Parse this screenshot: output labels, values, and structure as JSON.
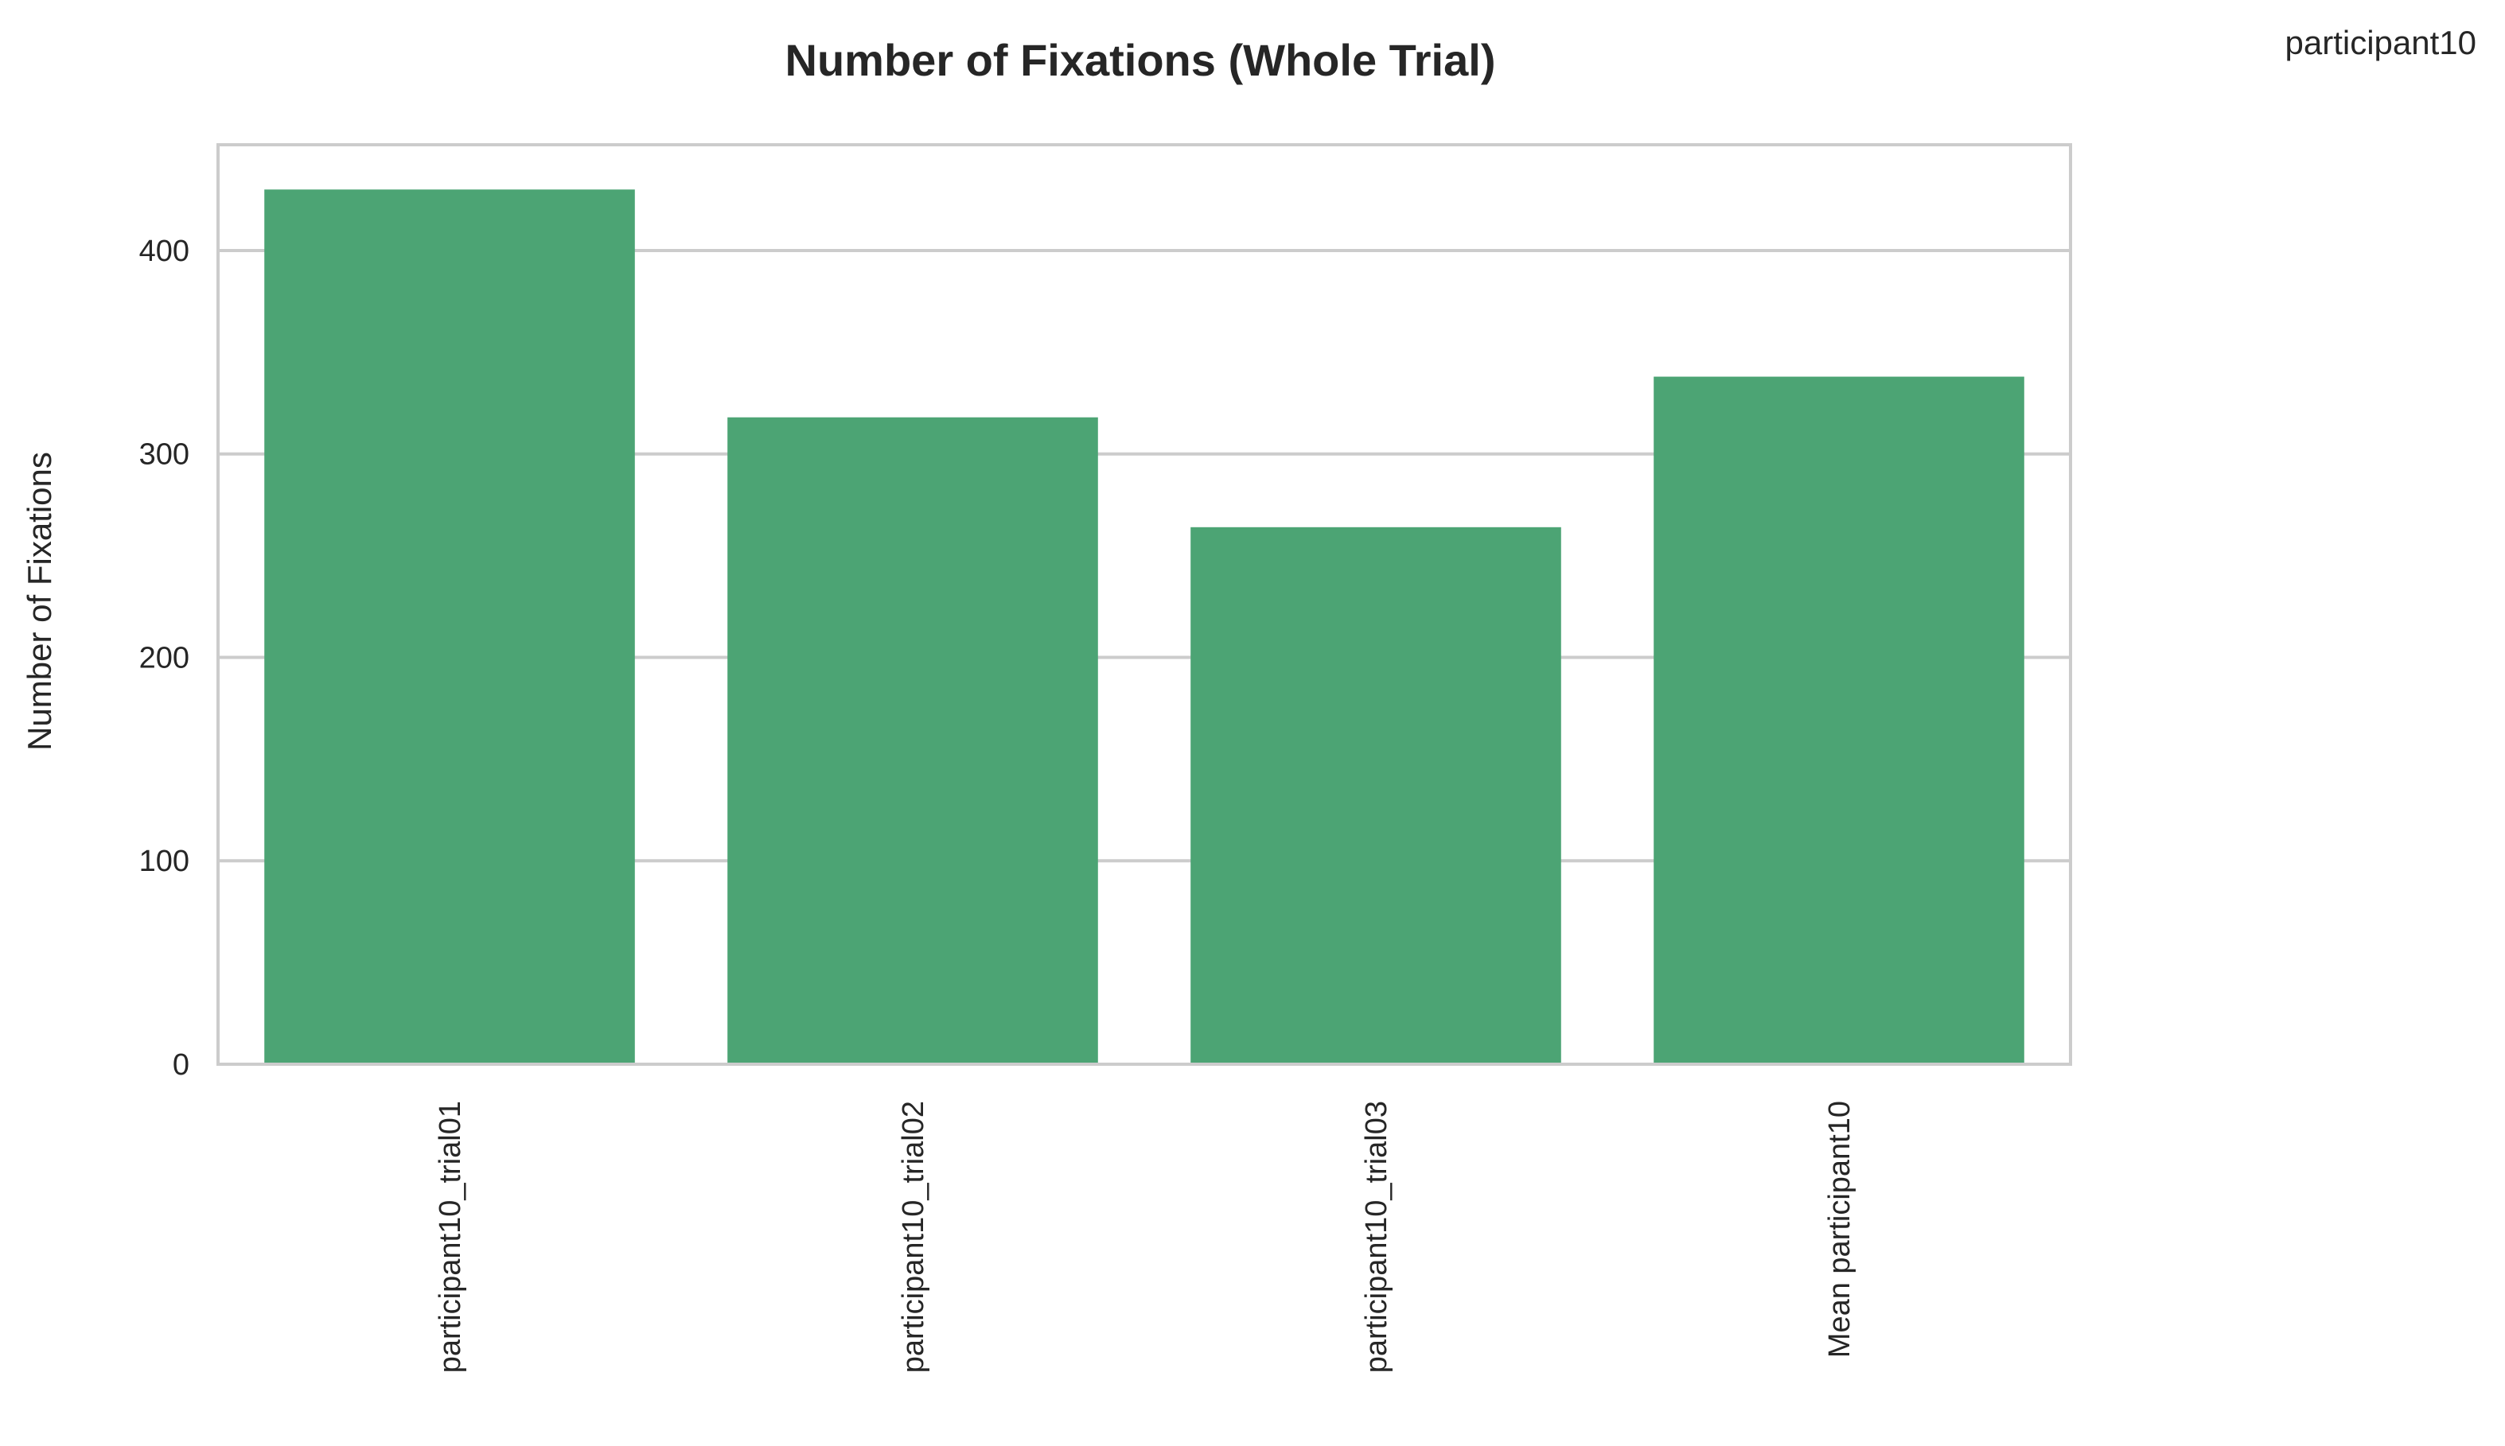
{
  "chart_data": {
    "type": "bar",
    "title": "Number of Fixations (Whole Trial)",
    "xlabel": "",
    "ylabel": "Number of Fixations",
    "categories": [
      "participant10_trial01",
      "participant10_trial02",
      "participant10_trial03",
      "Mean participant10"
    ],
    "series": [
      {
        "name": "participant10",
        "values": [
          430,
          318,
          264,
          338
        ]
      }
    ],
    "yticks": [
      0,
      100,
      200,
      300,
      400
    ],
    "ylim": [
      0,
      452
    ],
    "grid": true,
    "legend_position": "top-right",
    "bar_color": "#4ca474",
    "grid_color": "#cccccc",
    "spine_color": "#cccccc"
  }
}
